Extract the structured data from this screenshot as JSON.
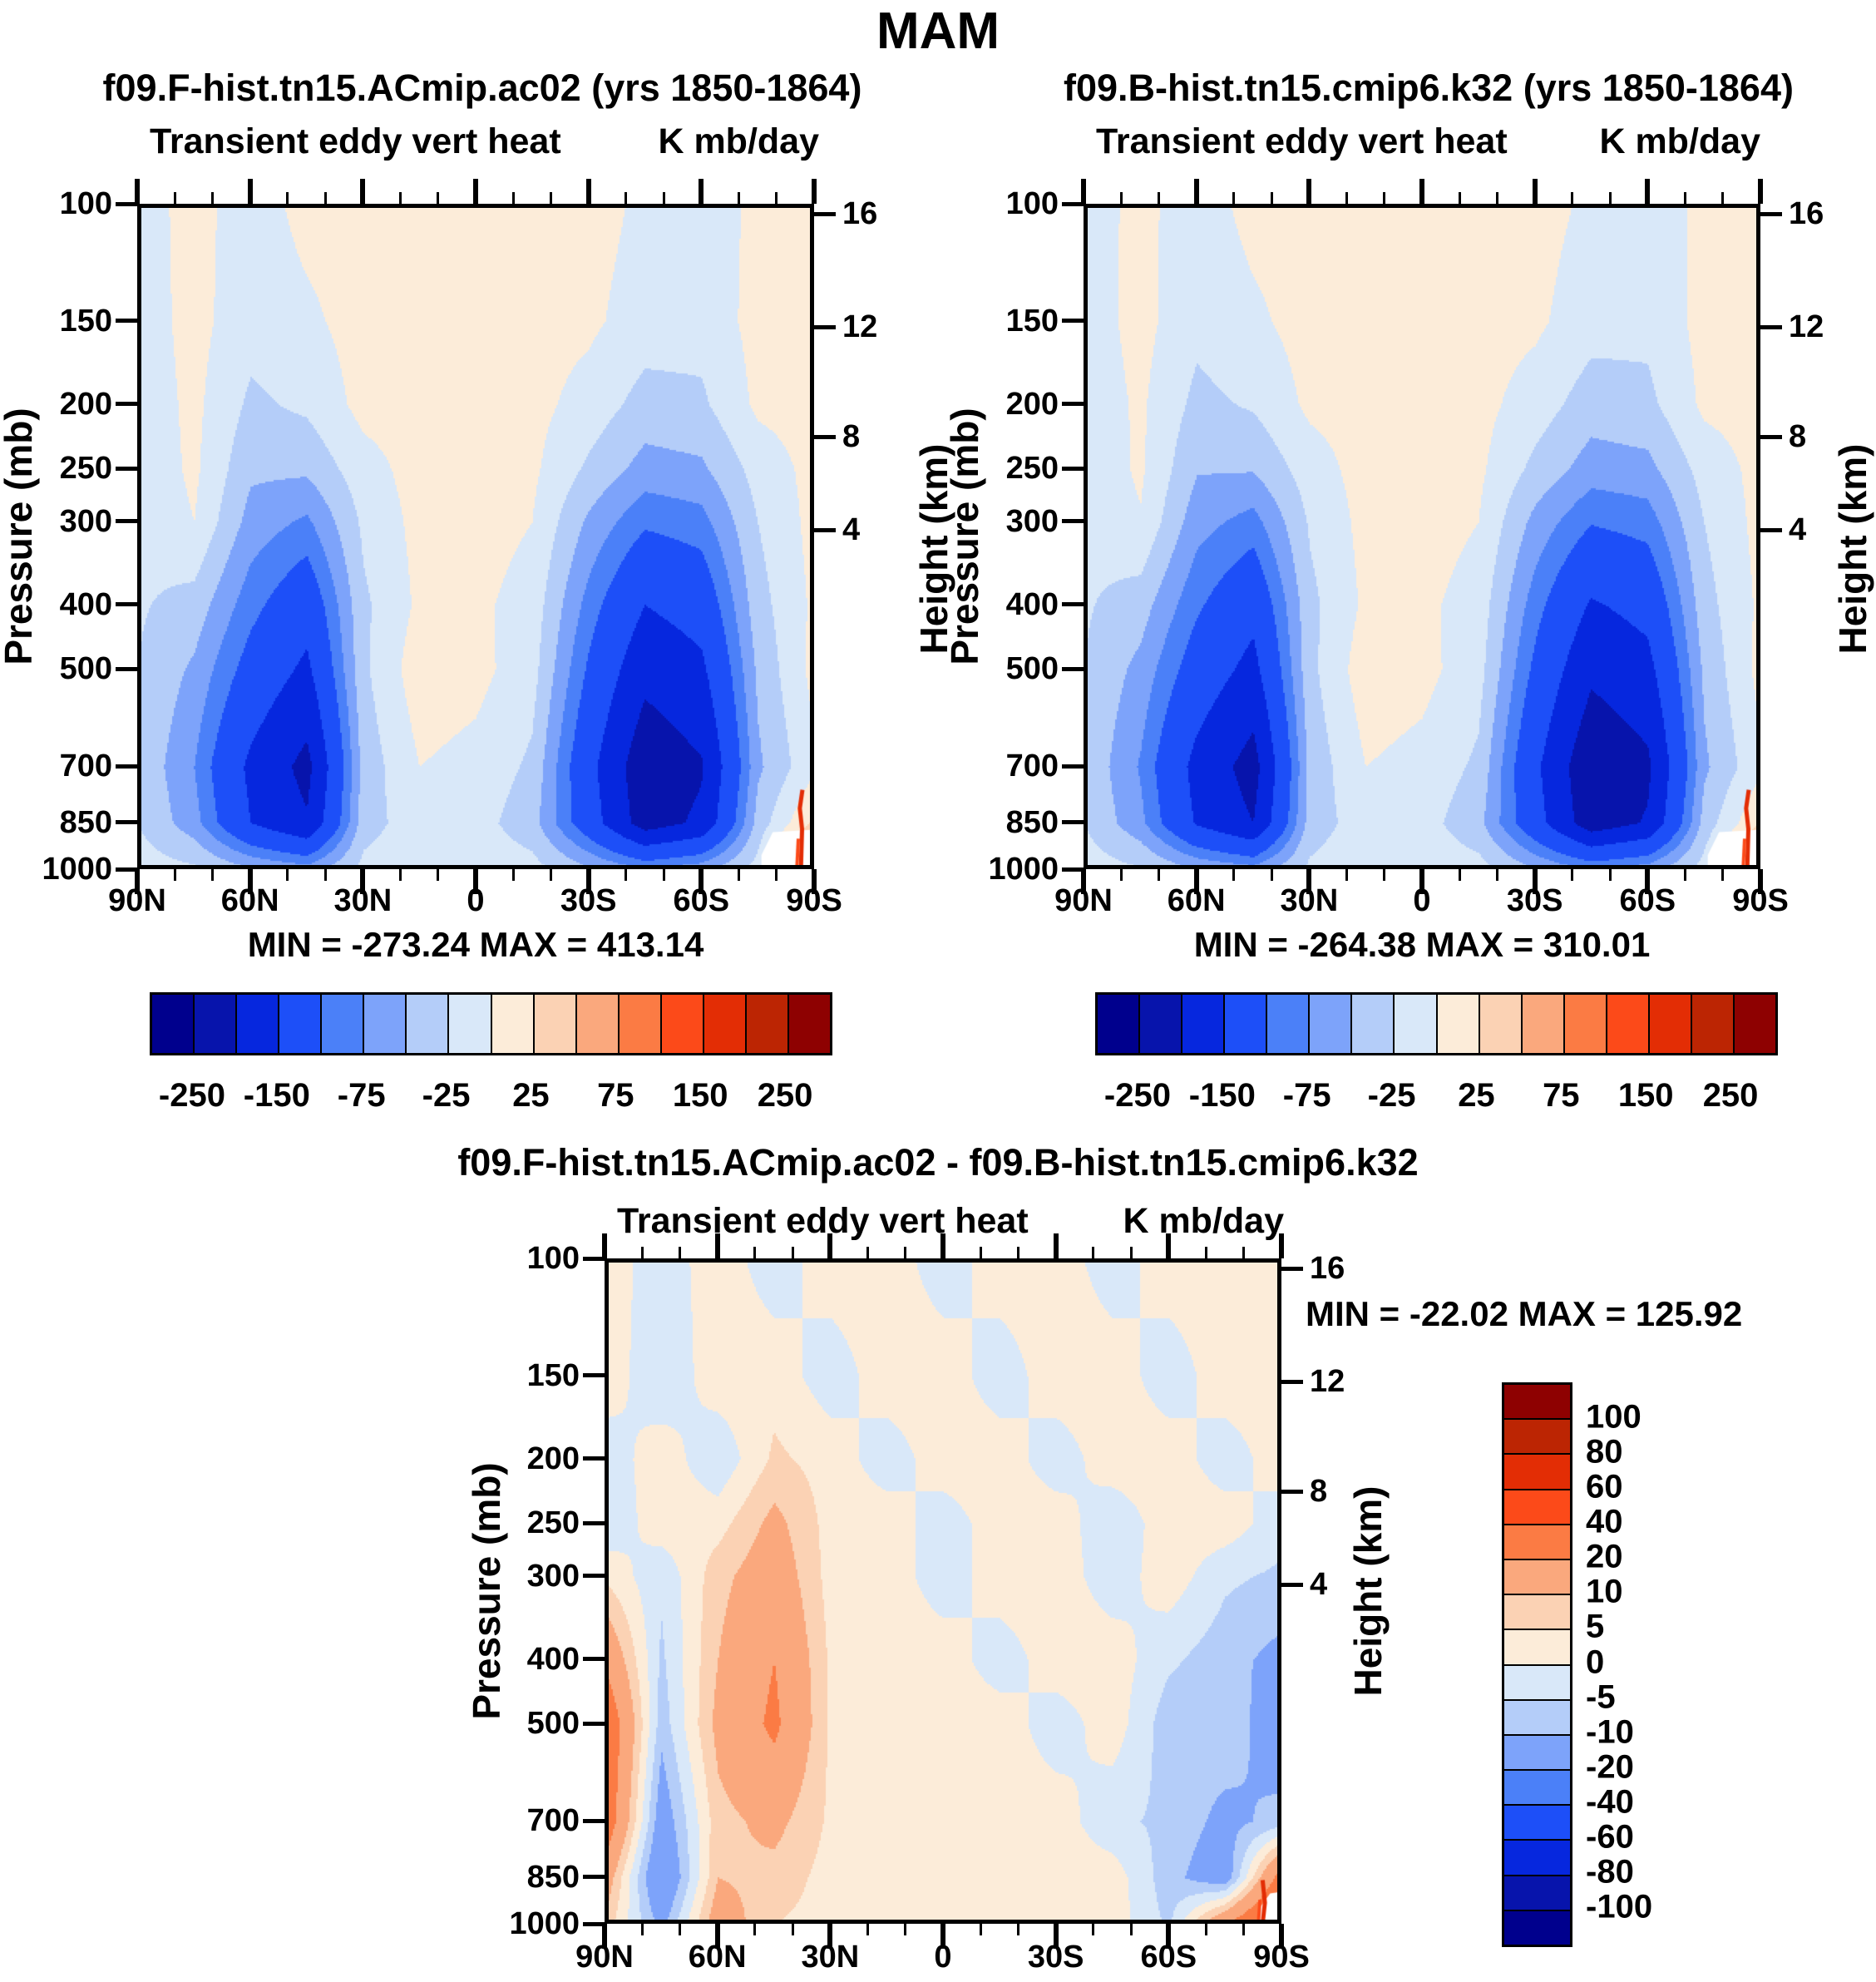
{
  "title": "MAM",
  "palette": [
    "#00008D",
    "#0714AC",
    "#0627DE",
    "#1D4FF8",
    "#4B80F8",
    "#7DA3FA",
    "#B4CDF9",
    "#D9E8F9",
    "#FCECD9",
    "#FBD2B4",
    "#FAA87D",
    "#FB7B44",
    "#FC4A19",
    "#E32D05",
    "#BC2503",
    "#8E0101"
  ],
  "chart_data": [
    {
      "type": "contour-fill",
      "title": "f09.F-hist.tn15.ACmip.ac02 (yrs 1850-1864)",
      "field_label": "Transient eddy vert heat",
      "units_label": "K mb/day",
      "minmax_text": "MIN = -273.24  MAX = 413.14",
      "min": -273.24,
      "max": 413.14,
      "ylabel": "Pressure (mb)",
      "y2label": "Height (km)",
      "x_tick_labels": [
        "90N",
        "60N",
        "30N",
        "0",
        "30S",
        "60S",
        "90S"
      ],
      "y_ticks": [
        100,
        150,
        200,
        250,
        300,
        400,
        500,
        700,
        850,
        1000
      ],
      "y2_ticks": [
        16,
        12,
        8,
        4
      ],
      "levels": [
        -250,
        -200,
        -150,
        -100,
        -75,
        -50,
        -25,
        0,
        25,
        50,
        75,
        100,
        150,
        200,
        250
      ],
      "colorbar_labels": [
        "-250",
        "-150",
        "-75",
        "-25",
        "25",
        "75",
        "150",
        "250"
      ],
      "lat": [
        90,
        75,
        60,
        45,
        30,
        15,
        0,
        -15,
        -30,
        -45,
        -60,
        -75,
        -90
      ],
      "plev": [
        100,
        150,
        200,
        250,
        300,
        400,
        500,
        700,
        850,
        1000
      ],
      "values": [
        [
          -10,
          8,
          -12,
          8,
          10,
          10,
          10,
          10,
          10,
          -5,
          -12,
          5,
          10
        ],
        [
          -12,
          8,
          -15,
          -5,
          10,
          10,
          12,
          10,
          5,
          -12,
          -15,
          8,
          10
        ],
        [
          -15,
          6,
          -30,
          -20,
          8,
          10,
          12,
          8,
          -10,
          -35,
          -30,
          5,
          10
        ],
        [
          -18,
          5,
          -45,
          -45,
          -10,
          10,
          12,
          5,
          -30,
          -60,
          -55,
          -15,
          8
        ],
        [
          -20,
          0,
          -60,
          -80,
          -20,
          8,
          10,
          0,
          -55,
          -95,
          -85,
          -25,
          8
        ],
        [
          -22,
          -35,
          -90,
          -130,
          -30,
          5,
          5,
          -10,
          -85,
          -150,
          -130,
          -35,
          5
        ],
        [
          -25,
          -55,
          -115,
          -160,
          -30,
          15,
          8,
          -15,
          -105,
          -185,
          -160,
          -45,
          8
        ],
        [
          -28,
          -75,
          -160,
          -215,
          -40,
          0,
          -8,
          -30,
          -135,
          -235,
          -205,
          -55,
          -5
        ],
        [
          -25,
          -65,
          -150,
          -195,
          -35,
          -12,
          -15,
          -40,
          -125,
          -225,
          -190,
          -40,
          30
        ],
        [
          -12,
          -20,
          -45,
          -60,
          -18,
          -8,
          -10,
          -15,
          -45,
          -70,
          -55,
          -15,
          120
        ]
      ]
    },
    {
      "type": "contour-fill",
      "title": "f09.B-hist.tn15.cmip6.k32 (yrs 1850-1864)",
      "field_label": "Transient eddy vert heat",
      "units_label": "K mb/day",
      "minmax_text": "MIN = -264.38  MAX = 310.01",
      "min": -264.38,
      "max": 310.01,
      "ylabel": "Pressure (mb)",
      "y2label": "Height (km)",
      "x_tick_labels": [
        "90N",
        "60N",
        "30N",
        "0",
        "30S",
        "60S",
        "90S"
      ],
      "y_ticks": [
        100,
        150,
        200,
        250,
        300,
        400,
        500,
        700,
        850,
        1000
      ],
      "y2_ticks": [
        16,
        12,
        8,
        4
      ],
      "levels": [
        -250,
        -200,
        -150,
        -100,
        -75,
        -50,
        -25,
        0,
        25,
        50,
        75,
        100,
        150,
        200,
        250
      ],
      "colorbar_labels": [
        "-250",
        "-150",
        "-75",
        "-25",
        "25",
        "75",
        "150",
        "250"
      ],
      "lat": [
        90,
        75,
        60,
        45,
        30,
        15,
        0,
        -15,
        -30,
        -45,
        -60,
        -75,
        -90
      ],
      "plev": [
        100,
        150,
        200,
        250,
        300,
        400,
        500,
        700,
        850,
        1000
      ],
      "values": [
        [
          -10,
          6,
          -12,
          8,
          10,
          10,
          10,
          10,
          10,
          -5,
          -12,
          5,
          10
        ],
        [
          -12,
          8,
          -18,
          -5,
          10,
          10,
          12,
          10,
          5,
          -15,
          -18,
          8,
          10
        ],
        [
          -15,
          4,
          -32,
          -22,
          5,
          10,
          12,
          8,
          -12,
          -38,
          -32,
          5,
          10
        ],
        [
          -18,
          4,
          -48,
          -48,
          -12,
          10,
          12,
          5,
          -32,
          -62,
          -58,
          -15,
          8
        ],
        [
          -20,
          -2,
          -65,
          -85,
          -22,
          8,
          10,
          0,
          -58,
          -98,
          -88,
          -25,
          8
        ],
        [
          -22,
          -38,
          -95,
          -135,
          -32,
          5,
          5,
          -10,
          -88,
          -155,
          -135,
          -35,
          5
        ],
        [
          -25,
          -58,
          -120,
          -165,
          -32,
          15,
          8,
          -15,
          -108,
          -190,
          -165,
          -45,
          8
        ],
        [
          -28,
          -78,
          -165,
          -220,
          -42,
          0,
          -8,
          -30,
          -140,
          -240,
          -210,
          -55,
          -5
        ],
        [
          -25,
          -68,
          -155,
          -200,
          -38,
          -12,
          -15,
          -42,
          -130,
          -230,
          -195,
          -40,
          25
        ],
        [
          -12,
          -22,
          -48,
          -62,
          -20,
          -8,
          -10,
          -15,
          -48,
          -72,
          -58,
          -15,
          90
        ]
      ]
    },
    {
      "type": "contour-fill",
      "title": "f09.F-hist.tn15.ACmip.ac02 - f09.B-hist.tn15.cmip6.k32",
      "field_label": "Transient eddy vert heat",
      "units_label": "K mb/day",
      "minmax_text": "MIN = -22.02  MAX = 125.92",
      "min": -22.02,
      "max": 125.92,
      "ylabel": "Pressure (mb)",
      "y2label": "Height (km)",
      "x_tick_labels": [
        "90N",
        "60N",
        "30N",
        "0",
        "30S",
        "60S",
        "90S"
      ],
      "y_ticks": [
        100,
        150,
        200,
        250,
        300,
        400,
        500,
        700,
        850,
        1000
      ],
      "y2_ticks": [
        16,
        12,
        8,
        4
      ],
      "levels": [
        -100,
        -80,
        -60,
        -40,
        -20,
        -10,
        -5,
        0,
        5,
        10,
        20,
        40,
        60,
        80,
        100
      ],
      "colorbar_labels": [
        "100",
        "80",
        "60",
        "40",
        "20",
        "10",
        "5",
        "0",
        "-5",
        "-10",
        "-20",
        "-40",
        "-60",
        "-80",
        "-100"
      ],
      "lat": [
        90,
        75,
        60,
        45,
        30,
        15,
        0,
        -15,
        -30,
        -45,
        -60,
        -75,
        -90
      ],
      "plev": [
        100,
        150,
        200,
        250,
        300,
        400,
        500,
        700,
        850,
        1000
      ],
      "values": [
        [
          3,
          -3,
          3,
          -3,
          3,
          3,
          -3,
          3,
          3,
          -3,
          3,
          3,
          3
        ],
        [
          3,
          -4,
          3,
          3,
          -3,
          3,
          3,
          -3,
          3,
          3,
          -3,
          3,
          3
        ],
        [
          -3,
          3,
          -4,
          6,
          3,
          -3,
          3,
          3,
          -3,
          3,
          3,
          -3,
          3
        ],
        [
          -4,
          3,
          3,
          12,
          3,
          3,
          -3,
          3,
          3,
          -4,
          3,
          3,
          -3
        ],
        [
          4,
          -4,
          8,
          15,
          3,
          3,
          -3,
          3,
          3,
          -3,
          3,
          -4,
          -6
        ],
        [
          18,
          -6,
          10,
          20,
          4,
          3,
          3,
          -3,
          3,
          3,
          -4,
          -8,
          -12
        ],
        [
          30,
          -8,
          12,
          22,
          4,
          3,
          3,
          3,
          -3,
          3,
          -8,
          -6,
          -15
        ],
        [
          28,
          -15,
          8,
          12,
          4,
          3,
          3,
          3,
          3,
          -4,
          -6,
          -12,
          -8
        ],
        [
          15,
          -20,
          10,
          8,
          3,
          3,
          3,
          3,
          3,
          3,
          -8,
          -15,
          25
        ],
        [
          8,
          -12,
          15,
          5,
          3,
          3,
          3,
          3,
          3,
          3,
          -6,
          20,
          40
        ]
      ]
    }
  ]
}
